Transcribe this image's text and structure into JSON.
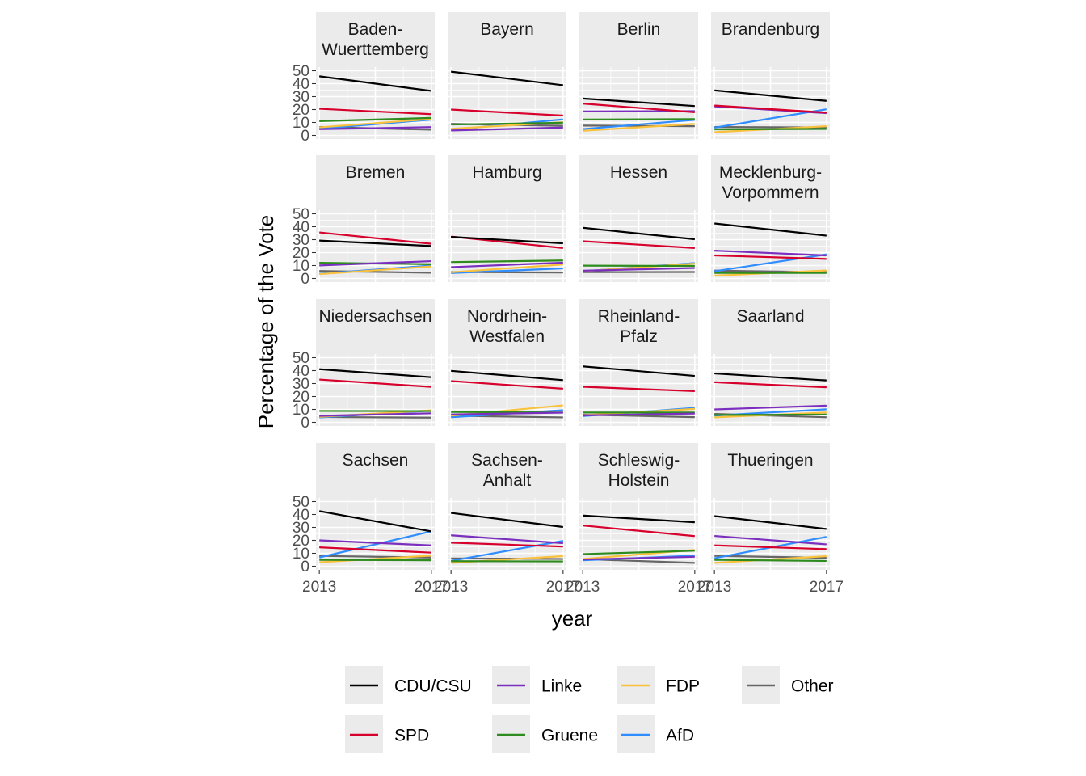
{
  "chart_data": {
    "type": "line",
    "xlabel": "year",
    "ylabel": "Percentage of the Vote",
    "x": [
      2013,
      2017
    ],
    "x_ticks": [
      "2013",
      "2017"
    ],
    "y_ticks": [
      "0",
      "10",
      "20",
      "30",
      "40",
      "50"
    ],
    "ylim": [
      0,
      50
    ],
    "grid": true,
    "legend_position": "bottom",
    "series": [
      {
        "name": "CDU/CSU",
        "color": "#000000"
      },
      {
        "name": "SPD",
        "color": "#d7002c"
      },
      {
        "name": "Linke",
        "color": "#7b2fbf"
      },
      {
        "name": "Gruene",
        "color": "#2e8b1e"
      },
      {
        "name": "FDP",
        "color": "#f9c13c"
      },
      {
        "name": "AfD",
        "color": "#2f8dff"
      },
      {
        "name": "Other",
        "color": "#666666"
      }
    ],
    "panels": [
      {
        "title": [
          "Baden-",
          "Wuerttemberg"
        ],
        "values": {
          "CDU/CSU": [
            45.7,
            34.4
          ],
          "SPD": [
            20.6,
            16.4
          ],
          "Linke": [
            4.8,
            6.4
          ],
          "Gruene": [
            11.0,
            13.5
          ],
          "FDP": [
            6.2,
            12.7
          ],
          "AfD": [
            5.2,
            12.2
          ],
          "Other": [
            6.5,
            4.4
          ]
        }
      },
      {
        "title": [
          "Bayern"
        ],
        "values": {
          "CDU/CSU": [
            49.3,
            38.8
          ],
          "SPD": [
            20.0,
            15.3
          ],
          "Linke": [
            3.8,
            6.1
          ],
          "Gruene": [
            8.4,
            9.8
          ],
          "FDP": [
            5.1,
            10.2
          ],
          "AfD": [
            4.3,
            12.4
          ],
          "Other": [
            8.9,
            7.4
          ]
        }
      },
      {
        "title": [
          "Berlin"
        ],
        "values": {
          "CDU/CSU": [
            28.5,
            22.7
          ],
          "SPD": [
            24.6,
            17.9
          ],
          "Linke": [
            18.5,
            18.8
          ],
          "Gruene": [
            12.3,
            12.6
          ],
          "FDP": [
            3.6,
            8.9
          ],
          "AfD": [
            4.9,
            12.0
          ],
          "Other": [
            7.6,
            7.1
          ]
        }
      },
      {
        "title": [
          "Brandenburg"
        ],
        "values": {
          "CDU/CSU": [
            34.8,
            26.7
          ],
          "SPD": [
            23.1,
            17.6
          ],
          "Linke": [
            22.4,
            17.2
          ],
          "Gruene": [
            4.7,
            5.0
          ],
          "FDP": [
            2.5,
            7.1
          ],
          "AfD": [
            6.0,
            20.2
          ],
          "Other": [
            6.5,
            6.2
          ]
        }
      },
      {
        "title": [
          "Bremen"
        ],
        "values": {
          "CDU/CSU": [
            29.3,
            25.1
          ],
          "SPD": [
            35.6,
            26.8
          ],
          "Linke": [
            10.1,
            13.4
          ],
          "Gruene": [
            12.1,
            11.0
          ],
          "FDP": [
            3.4,
            9.3
          ],
          "AfD": [
            3.7,
            10.0
          ],
          "Other": [
            5.8,
            4.4
          ]
        }
      },
      {
        "title": [
          "Hamburg"
        ],
        "values": {
          "CDU/CSU": [
            32.1,
            27.2
          ],
          "SPD": [
            32.4,
            23.5
          ],
          "Linke": [
            8.8,
            12.2
          ],
          "Gruene": [
            12.7,
            13.9
          ],
          "FDP": [
            4.8,
            10.8
          ],
          "AfD": [
            4.2,
            7.8
          ],
          "Other": [
            5.0,
            4.6
          ]
        }
      },
      {
        "title": [
          "Hessen"
        ],
        "values": {
          "CDU/CSU": [
            39.2,
            30.3
          ],
          "SPD": [
            28.8,
            23.5
          ],
          "Linke": [
            6.0,
            8.1
          ],
          "Gruene": [
            9.9,
            9.7
          ],
          "FDP": [
            5.6,
            11.5
          ],
          "AfD": [
            5.6,
            11.9
          ],
          "Other": [
            4.9,
            5.0
          ]
        }
      },
      {
        "title": [
          "Mecklenburg-",
          "Vorpommern"
        ],
        "values": {
          "CDU/CSU": [
            42.5,
            33.1
          ],
          "SPD": [
            17.8,
            15.1
          ],
          "Linke": [
            21.5,
            17.8
          ],
          "Gruene": [
            4.3,
            4.3
          ],
          "FDP": [
            2.2,
            6.2
          ],
          "AfD": [
            5.6,
            18.6
          ],
          "Other": [
            6.1,
            4.9
          ]
        }
      },
      {
        "title": [
          "Niedersachsen"
        ],
        "values": {
          "CDU/CSU": [
            41.1,
            34.9
          ],
          "SPD": [
            33.1,
            27.4
          ],
          "Linke": [
            5.0,
            7.0
          ],
          "Gruene": [
            8.8,
            8.7
          ],
          "FDP": [
            4.2,
            9.3
          ],
          "AfD": [
            3.7,
            9.1
          ],
          "Other": [
            4.1,
            3.6
          ]
        }
      },
      {
        "title": [
          "Nordrhein-",
          "Westfalen"
        ],
        "values": {
          "CDU/CSU": [
            39.8,
            32.6
          ],
          "SPD": [
            31.9,
            26.0
          ],
          "Linke": [
            6.1,
            7.5
          ],
          "Gruene": [
            8.0,
            7.6
          ],
          "FDP": [
            5.2,
            13.1
          ],
          "AfD": [
            3.9,
            9.4
          ],
          "Other": [
            5.1,
            3.8
          ]
        }
      },
      {
        "title": [
          "Rheinland-",
          "Pfalz"
        ],
        "values": {
          "CDU/CSU": [
            43.3,
            35.9
          ],
          "SPD": [
            27.5,
            24.1
          ],
          "Linke": [
            5.4,
            6.8
          ],
          "Gruene": [
            7.6,
            7.6
          ],
          "FDP": [
            5.5,
            10.4
          ],
          "AfD": [
            4.8,
            11.2
          ],
          "Other": [
            5.9,
            4.0
          ]
        }
      },
      {
        "title": [
          "Saarland"
        ],
        "values": {
          "CDU/CSU": [
            37.8,
            32.4
          ],
          "SPD": [
            31.0,
            27.1
          ],
          "Linke": [
            10.0,
            12.9
          ],
          "Gruene": [
            5.7,
            6.0
          ],
          "FDP": [
            3.8,
            7.6
          ],
          "AfD": [
            5.2,
            10.1
          ],
          "Other": [
            6.5,
            3.9
          ]
        }
      },
      {
        "title": [
          "Sachsen"
        ],
        "values": {
          "CDU/CSU": [
            42.6,
            26.9
          ],
          "SPD": [
            14.6,
            10.5
          ],
          "Linke": [
            20.0,
            16.1
          ],
          "Gruene": [
            4.9,
            4.6
          ],
          "FDP": [
            3.1,
            8.2
          ],
          "AfD": [
            6.8,
            27.0
          ],
          "Other": [
            8.0,
            6.7
          ]
        }
      },
      {
        "title": [
          "Sachsen-",
          "Anhalt"
        ],
        "values": {
          "CDU/CSU": [
            41.2,
            30.3
          ],
          "SPD": [
            18.2,
            15.2
          ],
          "Linke": [
            23.9,
            17.8
          ],
          "Gruene": [
            3.9,
            3.7
          ],
          "FDP": [
            2.6,
            7.8
          ],
          "AfD": [
            4.2,
            19.6
          ],
          "Other": [
            6.0,
            5.6
          ]
        }
      },
      {
        "title": [
          "Schleswig-",
          "Holstein"
        ],
        "values": {
          "CDU/CSU": [
            39.2,
            34.0
          ],
          "SPD": [
            31.5,
            23.3
          ],
          "Linke": [
            5.2,
            7.3
          ],
          "Gruene": [
            9.4,
            12.0
          ],
          "FDP": [
            5.6,
            12.6
          ],
          "AfD": [
            4.6,
            8.2
          ],
          "Other": [
            5.5,
            2.6
          ]
        }
      },
      {
        "title": [
          "Thueringen"
        ],
        "values": {
          "CDU/CSU": [
            38.8,
            28.8
          ],
          "SPD": [
            16.1,
            13.2
          ],
          "Linke": [
            23.4,
            16.9
          ],
          "Gruene": [
            4.9,
            4.1
          ],
          "FDP": [
            2.6,
            7.8
          ],
          "AfD": [
            6.2,
            22.7
          ],
          "Other": [
            8.0,
            6.5
          ]
        }
      }
    ],
    "legend_rows": [
      [
        "CDU/CSU",
        "Linke",
        "FDP",
        "Other"
      ],
      [
        "SPD",
        "Gruene",
        "AfD"
      ]
    ]
  }
}
